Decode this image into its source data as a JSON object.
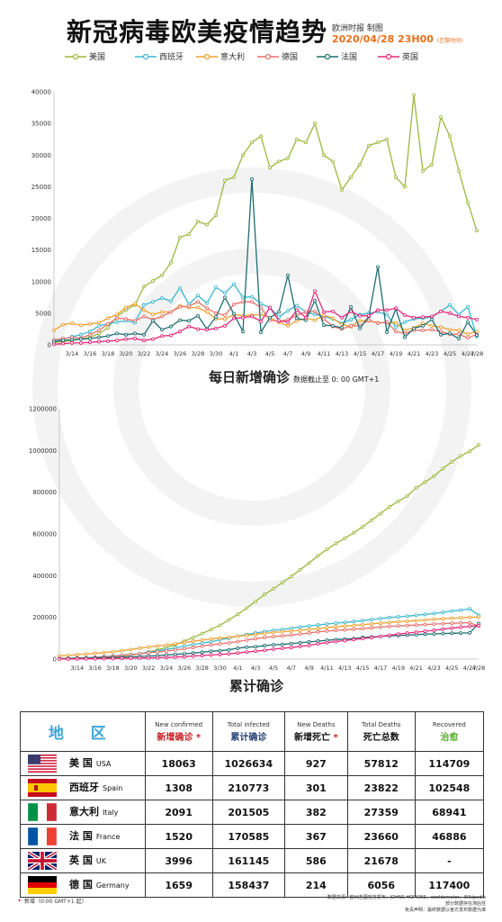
{
  "header": {
    "title": "新冠病毒欧美疫情趋势",
    "credit": "欧洲时报 制图",
    "date": "2020/04/28 23H00",
    "date_note": "(巴黎时间)"
  },
  "legend": [
    {
      "name": "美国",
      "color": "#9db83d"
    },
    {
      "name": "西班牙",
      "color": "#3cb8d0"
    },
    {
      "name": "意大利",
      "color": "#f0a030"
    },
    {
      "name": "德国",
      "color": "#e8706a"
    },
    {
      "name": "法国",
      "color": "#1f6e72"
    },
    {
      "name": "英国",
      "color": "#e8287a"
    }
  ],
  "chart1_title": "每日新增确诊",
  "chart1_note": "数据截止至 0: 00 GMT+1",
  "chart2_title": "累计确诊",
  "chart_data": [
    {
      "type": "line",
      "title": "每日新增确诊",
      "ylim": [
        0,
        40000
      ],
      "yticks": [
        0,
        5000,
        10000,
        15000,
        20000,
        25000,
        30000,
        35000,
        40000
      ],
      "x_tick_labels": [
        "3/14",
        "3/16",
        "3/18",
        "3/20",
        "3/22",
        "3/24",
        "3/26",
        "3/28",
        "3/30",
        "4/1",
        "4/3",
        "4/5",
        "4/7",
        "4/9",
        "4/11",
        "4/13",
        "4/15",
        "4/17",
        "4/19",
        "4/21",
        "4/23",
        "4/25",
        "4/27",
        "4/28"
      ],
      "x": [
        "3/12",
        "3/13",
        "3/14",
        "3/15",
        "3/16",
        "3/17",
        "3/18",
        "3/19",
        "3/20",
        "3/21",
        "3/22",
        "3/23",
        "3/24",
        "3/25",
        "3/26",
        "3/27",
        "3/28",
        "3/29",
        "3/30",
        "3/31",
        "4/1",
        "4/2",
        "4/3",
        "4/4",
        "4/5",
        "4/6",
        "4/7",
        "4/8",
        "4/9",
        "4/10",
        "4/11",
        "4/12",
        "4/13",
        "4/14",
        "4/15",
        "4/16",
        "4/17",
        "4/18",
        "4/19",
        "4/20",
        "4/21",
        "4/22",
        "4/23",
        "4/24",
        "4/25",
        "4/26",
        "4/27",
        "4/28"
      ],
      "series": [
        {
          "name": "美国",
          "color": "#9db83d",
          "values": [
            400,
            500,
            700,
            900,
            1200,
            1800,
            2700,
            4500,
            5500,
            6300,
            9200,
            10100,
            11000,
            13000,
            17000,
            17500,
            19500,
            19000,
            20500,
            26000,
            26500,
            30000,
            32000,
            33000,
            28000,
            29000,
            29500,
            32500,
            32000,
            35000,
            30000,
            29000,
            24500,
            26500,
            28500,
            31500,
            32000,
            32500,
            26500,
            25000,
            39500,
            27500,
            28500,
            36000,
            33000,
            27500,
            22500,
            18063
          ]
        },
        {
          "name": "西班牙",
          "color": "#3cb8d0",
          "values": [
            700,
            900,
            1300,
            1600,
            2100,
            3000,
            3300,
            3600,
            3800,
            3500,
            6300,
            6800,
            7400,
            6900,
            9000,
            6400,
            7800,
            6600,
            9100,
            8200,
            9600,
            7500,
            7600,
            6500,
            5900,
            4400,
            5400,
            6200,
            5200,
            4800,
            4500,
            4100,
            3400,
            4000,
            4800,
            5000,
            5200,
            4800,
            2800,
            3600,
            4100,
            4200,
            4400,
            5300,
            6300,
            4800,
            6000,
            1308
          ]
        },
        {
          "name": "意大利",
          "color": "#f0a030",
          "values": [
            2300,
            3200,
            3400,
            3100,
            3300,
            3500,
            4200,
            4800,
            5900,
            6500,
            5500,
            4800,
            5200,
            5200,
            6200,
            5900,
            5900,
            5200,
            4100,
            4100,
            4800,
            4600,
            4700,
            4800,
            4300,
            3600,
            3000,
            3800,
            4200,
            3900,
            4700,
            4200,
            3200,
            2900,
            3800,
            3800,
            3500,
            3500,
            3500,
            2300,
            2700,
            3400,
            3000,
            2800,
            2400,
            2300,
            1700,
            2091
          ]
        },
        {
          "name": "德国",
          "color": "#e8706a",
          "values": [
            800,
            1000,
            1200,
            1100,
            1600,
            2300,
            3300,
            4200,
            4100,
            3800,
            4500,
            4000,
            4500,
            5200,
            6000,
            6100,
            6800,
            5800,
            5000,
            4700,
            6400,
            6800,
            6800,
            5900,
            3900,
            3700,
            4000,
            4700,
            5200,
            5300,
            4100,
            2900,
            2500,
            3000,
            3000,
            3900,
            3400,
            3600,
            2100,
            1800,
            2300,
            2300,
            2400,
            2100,
            1700,
            1700,
            1100,
            1659
          ]
        },
        {
          "name": "法国",
          "color": "#1f6e72",
          "values": [
            500,
            700,
            800,
            900,
            1000,
            1200,
            1400,
            1800,
            1600,
            1800,
            1600,
            3800,
            2400,
            2900,
            3900,
            3800,
            4600,
            2500,
            4400,
            7500,
            4900,
            2100,
            26200,
            2000,
            4300,
            5200,
            11000,
            4200,
            3900,
            7000,
            3100,
            3000,
            2700,
            6000,
            2600,
            4500,
            12300,
            2000,
            5700,
            1200,
            2600,
            3000,
            4000,
            1600,
            1800,
            1000,
            3600,
            1520
          ]
        },
        {
          "name": "英国",
          "color": "#e8287a",
          "values": [
            100,
            200,
            300,
            300,
            400,
            500,
            600,
            700,
            900,
            1000,
            700,
            900,
            1400,
            1500,
            2100,
            2900,
            2500,
            2400,
            2600,
            3000,
            4200,
            4300,
            4500,
            3700,
            5900,
            3800,
            3600,
            5500,
            4300,
            8500,
            5200,
            5300,
            4300,
            5300,
            4600,
            4600,
            5500,
            5500,
            5800,
            4700,
            4300,
            4400,
            4500,
            5300,
            5000,
            4500,
            4300,
            3996
          ]
        }
      ]
    },
    {
      "type": "line",
      "title": "累计确诊",
      "ylim": [
        0,
        1200000
      ],
      "yticks": [
        0,
        200000,
        400000,
        600000,
        800000,
        1000000,
        1200000
      ],
      "x_tick_labels": [
        "3/14",
        "3/16",
        "3/18",
        "3/20",
        "3/22",
        "3/24",
        "3/26",
        "3/28",
        "3/30",
        "4/1",
        "4/3",
        "4/5",
        "4/7",
        "4/9",
        "4/11",
        "4/13",
        "4/15",
        "4/17",
        "4/19",
        "4/21",
        "4/23",
        "4/25",
        "4/27",
        "4/28"
      ],
      "x": [
        "3/12",
        "3/13",
        "3/14",
        "3/15",
        "3/16",
        "3/17",
        "3/18",
        "3/19",
        "3/20",
        "3/21",
        "3/22",
        "3/23",
        "3/24",
        "3/25",
        "3/26",
        "3/27",
        "3/28",
        "3/29",
        "3/30",
        "3/31",
        "4/1",
        "4/2",
        "4/3",
        "4/4",
        "4/5",
        "4/6",
        "4/7",
        "4/8",
        "4/9",
        "4/10",
        "4/11",
        "4/12",
        "4/13",
        "4/14",
        "4/15",
        "4/16",
        "4/17",
        "4/18",
        "4/19",
        "4/20",
        "4/21",
        "4/22",
        "4/23",
        "4/24",
        "4/25",
        "4/26",
        "4/27",
        "4/28"
      ],
      "series": [
        {
          "name": "美国",
          "color": "#9db83d",
          "values": [
            1300,
            1800,
            2500,
            3400,
            4600,
            6400,
            9100,
            13600,
            19100,
            25400,
            34600,
            44700,
            55700,
            68700,
            85700,
            103200,
            122700,
            141700,
            162200,
            188200,
            214700,
            244700,
            276700,
            309700,
            337700,
            366700,
            396200,
            428700,
            460700,
            495700,
            525700,
            554700,
            579200,
            605700,
            634200,
            665700,
            697700,
            730200,
            756700,
            781700,
            821200,
            848700,
            877200,
            913200,
            946200,
            973700,
            996200,
            1026634
          ]
        },
        {
          "name": "西班牙",
          "color": "#3cb8d0",
          "values": [
            3000,
            3900,
            5200,
            6800,
            8900,
            11900,
            15200,
            18800,
            22600,
            26100,
            32400,
            39200,
            46600,
            53500,
            62500,
            68900,
            76700,
            83300,
            92400,
            100600,
            110200,
            117700,
            125300,
            131800,
            137700,
            142100,
            147500,
            153700,
            158900,
            163700,
            168200,
            172300,
            175700,
            179700,
            184500,
            189500,
            194700,
            199500,
            202300,
            205900,
            210000,
            214200,
            218600,
            223900,
            230200,
            235000,
            241000,
            210773
          ]
        },
        {
          "name": "意大利",
          "color": "#f0a030",
          "values": [
            15100,
            17700,
            21100,
            24200,
            27500,
            31000,
            35200,
            40000,
            45900,
            52400,
            57900,
            62700,
            67900,
            73100,
            79300,
            85200,
            91100,
            96300,
            100400,
            104500,
            109300,
            113900,
            118600,
            123400,
            127700,
            131300,
            134300,
            138100,
            142300,
            146200,
            150900,
            155100,
            158300,
            161200,
            165000,
            168800,
            172300,
            175800,
            179300,
            181600,
            184300,
            187700,
            190700,
            193500,
            195900,
            198200,
            199900,
            201505
          ]
        },
        {
          "name": "德国",
          "color": "#e8706a",
          "values": [
            2700,
            3700,
            4900,
            6000,
            7600,
            9900,
            13200,
            17400,
            21500,
            25300,
            29800,
            33800,
            38300,
            43500,
            49500,
            55600,
            62400,
            68200,
            73200,
            77900,
            84300,
            91100,
            97900,
            103800,
            107700,
            111400,
            115400,
            120100,
            125300,
            130600,
            134700,
            137600,
            140100,
            143100,
            146100,
            150000,
            153400,
            157000,
            159100,
            160900,
            163200,
            165500,
            167900,
            170000,
            171700,
            173400,
            174500,
            158437
          ]
        },
        {
          "name": "法国",
          "color": "#1f6e72",
          "values": [
            2300,
            2900,
            3700,
            4500,
            5400,
            6600,
            7700,
            9100,
            10900,
            12600,
            14500,
            16000,
            19900,
            22300,
            25200,
            29100,
            32900,
            37500,
            40100,
            44500,
            52100,
            57000,
            59100,
            64300,
            68600,
            70400,
            74400,
            78200,
            82000,
            86300,
            90300,
            93800,
            95400,
            98000,
            103600,
            106200,
            108800,
            111800,
            112600,
            114700,
            117300,
            119200,
            120800,
            122600,
            124100,
            124600,
            125800,
            170585
          ]
        },
        {
          "name": "英国",
          "color": "#e8287a",
          "values": [
            500,
            800,
            1100,
            1400,
            1500,
            2000,
            2600,
            3300,
            4000,
            5000,
            5700,
            6600,
            8100,
            9500,
            11700,
            14500,
            17100,
            19500,
            22100,
            25100,
            29500,
            33700,
            38200,
            41900,
            47800,
            51600,
            55200,
            60700,
            65100,
            73800,
            79000,
            84300,
            88600,
            93900,
            98500,
            103100,
            108700,
            114200,
            120100,
            124700,
            129000,
            133500,
            138100,
            143500,
            148400,
            152800,
            157100,
            161145
          ]
        }
      ]
    }
  ],
  "table": {
    "headers": {
      "region": "地 区",
      "new_confirmed_en": "New confirmed",
      "new_confirmed_zh": "新增确诊",
      "infected_en": "Total infected",
      "infected_zh": "累计确诊",
      "new_deaths_en": "New Deaths",
      "new_deaths_zh": "新增死亡",
      "total_deaths_en": "Total Deaths",
      "total_deaths_zh": "死亡总数",
      "recovered_en": "Recovered",
      "recovered_zh": "治愈",
      "star": "*"
    },
    "rows": [
      {
        "flag": "usa",
        "zh": "美 国",
        "en": "USA",
        "new_confirmed": "18063",
        "total_infected": "1026634",
        "new_deaths": "927",
        "total_deaths": "57812",
        "recovered": "114709"
      },
      {
        "flag": "spain",
        "zh": "西班牙",
        "en": "Spain",
        "new_confirmed": "1308",
        "total_infected": "210773",
        "new_deaths": "301",
        "total_deaths": "23822",
        "recovered": "102548"
      },
      {
        "flag": "italy",
        "zh": "意大利",
        "en": "Italy",
        "new_confirmed": "2091",
        "total_infected": "201505",
        "new_deaths": "382",
        "total_deaths": "27359",
        "recovered": "68941"
      },
      {
        "flag": "france",
        "zh": "法 国",
        "en": "France",
        "new_confirmed": "1520",
        "total_infected": "170585",
        "new_deaths": "367",
        "total_deaths": "23660",
        "recovered": "46886"
      },
      {
        "flag": "uk",
        "zh": "英 国",
        "en": "UK",
        "new_confirmed": "3996",
        "total_infected": "161145",
        "new_deaths": "586",
        "total_deaths": "21678",
        "recovered": "-"
      },
      {
        "flag": "germany",
        "zh": "德 国",
        "en": "Germany",
        "new_confirmed": "1659",
        "total_infected": "158437",
        "new_deaths": "214",
        "total_deaths": "6056",
        "recovered": "117400"
      }
    ]
  },
  "footer": {
    "star": "*",
    "note": "新增（0:00 GMT+1 起）",
    "source1": "数据来源：欧洲各国官方发布，JOHNS HOPKINS，worldometer，Wikipedia",
    "source2": "部分数据存在滞后性",
    "source3": "免责声明：最终数据以官方发布数据为准"
  },
  "colors": {
    "accent_orange": "#e8701c",
    "red": "#c81e24",
    "teal": "#3ba6d6",
    "green": "#58b030",
    "navy": "#1f3d6e"
  }
}
